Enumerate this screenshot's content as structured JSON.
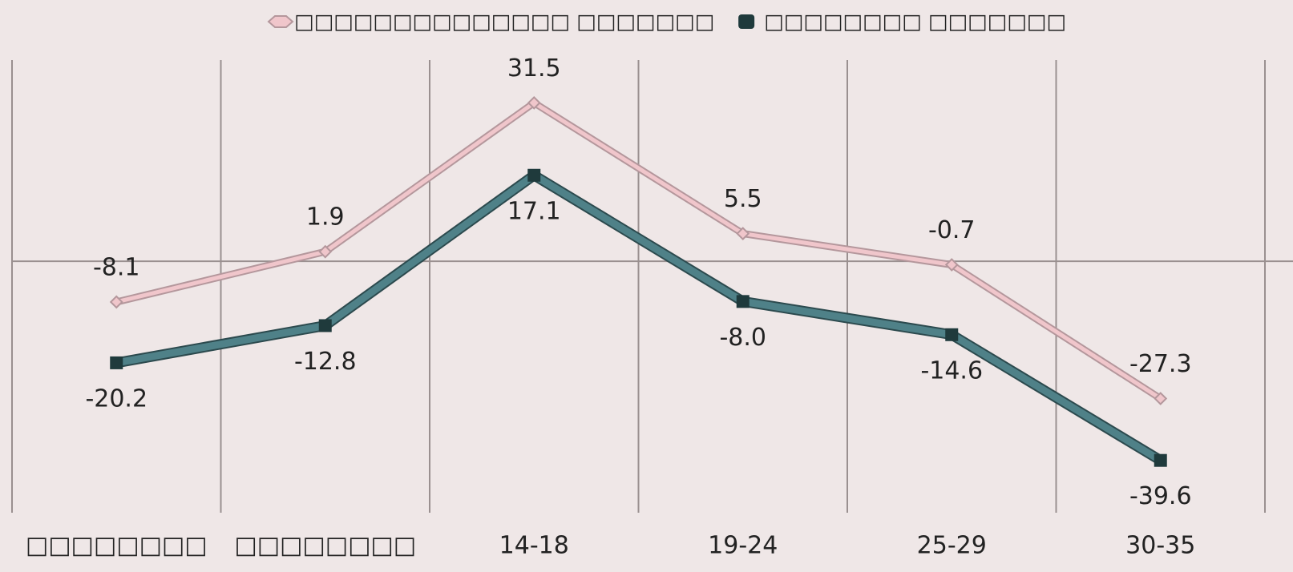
{
  "chart_data": {
    "type": "line",
    "categories": [
      "□□□□□□□□",
      "□□□□□□□□",
      "14-18",
      "19-24",
      "25-29",
      "30-35"
    ],
    "series": [
      {
        "name": "□□□□□□□□□□□□□□ □□□□□□□",
        "color": "#f0c6cb",
        "values": [
          -8.1,
          1.9,
          31.5,
          5.5,
          -0.7,
          -27.3
        ],
        "value_labels": [
          "-8.1",
          "1.9",
          "31.5",
          "5.5",
          "-0.7",
          "-27.3"
        ]
      },
      {
        "name": "□□□□□□□□ □□□□□□□",
        "color": "#4f8188",
        "values": [
          -20.2,
          -12.8,
          17.1,
          -8.0,
          -14.6,
          -39.6
        ],
        "value_labels": [
          "-20.2",
          "-12.8",
          "17.1",
          "-8.0",
          "-14.6",
          "-39.6"
        ]
      }
    ],
    "ylim": [
      -50,
      40
    ],
    "grid": true,
    "legend": "top"
  }
}
